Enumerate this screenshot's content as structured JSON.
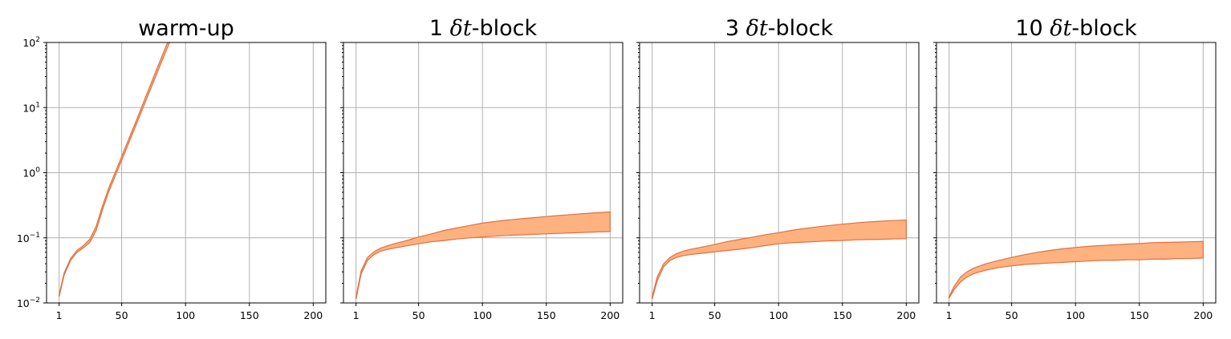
{
  "chart_data": [
    {
      "type": "area",
      "title": "warm-up",
      "title_parts": [
        {
          "text": "warm-up",
          "italic": false
        }
      ],
      "xlabel": "",
      "ylabel": "",
      "xlim": [
        1,
        200
      ],
      "ylim": [
        0.01,
        100
      ],
      "yscale": "log",
      "grid": true,
      "xticks": [
        1,
        50,
        100,
        150,
        200
      ],
      "yticks": [
        0.01,
        0.1,
        1,
        10,
        100
      ],
      "ytick_labels": [
        {
          "base": "10",
          "exp": "−2"
        },
        {
          "base": "10",
          "exp": "−1"
        },
        {
          "base": "10",
          "exp": "0"
        },
        {
          "base": "10",
          "exp": "1"
        },
        {
          "base": "10",
          "exp": "2"
        }
      ],
      "colors": {
        "fill": "#ffb27f",
        "edge": "#e07040"
      },
      "x": [
        1,
        5,
        10,
        15,
        20,
        25,
        30,
        35,
        40,
        45,
        50,
        55,
        60,
        65,
        70,
        75,
        80,
        85,
        90
      ],
      "lower": [
        0.0125,
        0.027,
        0.045,
        0.06,
        0.07,
        0.085,
        0.13,
        0.27,
        0.52,
        0.9,
        1.55,
        2.7,
        4.7,
        8.2,
        14.5,
        25,
        44,
        76,
        130
      ],
      "upper": [
        0.0135,
        0.029,
        0.048,
        0.064,
        0.076,
        0.095,
        0.15,
        0.31,
        0.59,
        1.02,
        1.78,
        3.1,
        5.4,
        9.5,
        16.8,
        29.5,
        52,
        90,
        155
      ]
    },
    {
      "type": "area",
      "title": "1 δt-block",
      "title_parts": [
        {
          "text": "1 ",
          "italic": false
        },
        {
          "text": "δt",
          "italic": true
        },
        {
          "text": "-block",
          "italic": false
        }
      ],
      "xlabel": "",
      "ylabel": "",
      "xlim": [
        1,
        200
      ],
      "ylim": [
        0.01,
        100
      ],
      "yscale": "log",
      "grid": true,
      "xticks": [
        1,
        50,
        100,
        150,
        200
      ],
      "colors": {
        "fill": "#ffb27f",
        "edge": "#e07040"
      },
      "x": [
        1,
        5,
        10,
        15,
        20,
        25,
        30,
        40,
        50,
        60,
        70,
        80,
        90,
        100,
        110,
        120,
        130,
        140,
        150,
        160,
        170,
        180,
        190,
        200
      ],
      "lower": [
        0.0115,
        0.028,
        0.045,
        0.055,
        0.062,
        0.066,
        0.069,
        0.075,
        0.081,
        0.087,
        0.091,
        0.096,
        0.1,
        0.103,
        0.106,
        0.109,
        0.111,
        0.113,
        0.115,
        0.117,
        0.119,
        0.121,
        0.123,
        0.125
      ],
      "upper": [
        0.0125,
        0.031,
        0.05,
        0.061,
        0.069,
        0.075,
        0.08,
        0.09,
        0.103,
        0.115,
        0.13,
        0.142,
        0.155,
        0.168,
        0.178,
        0.188,
        0.196,
        0.204,
        0.212,
        0.22,
        0.228,
        0.236,
        0.243,
        0.25
      ]
    },
    {
      "type": "area",
      "title": "3 δt-block",
      "title_parts": [
        {
          "text": "3 ",
          "italic": false
        },
        {
          "text": "δt",
          "italic": true
        },
        {
          "text": "-block",
          "italic": false
        }
      ],
      "xlabel": "",
      "ylabel": "",
      "xlim": [
        1,
        200
      ],
      "ylim": [
        0.01,
        100
      ],
      "yscale": "log",
      "grid": true,
      "xticks": [
        1,
        50,
        100,
        150,
        200
      ],
      "colors": {
        "fill": "#ffb27f",
        "edge": "#e07040"
      },
      "x": [
        1,
        5,
        10,
        15,
        20,
        25,
        30,
        40,
        50,
        60,
        70,
        80,
        90,
        100,
        110,
        120,
        130,
        140,
        150,
        160,
        170,
        180,
        190,
        200
      ],
      "lower": [
        0.0115,
        0.022,
        0.036,
        0.045,
        0.05,
        0.053,
        0.055,
        0.058,
        0.061,
        0.064,
        0.067,
        0.071,
        0.076,
        0.081,
        0.084,
        0.086,
        0.088,
        0.09,
        0.091,
        0.093,
        0.094,
        0.095,
        0.096,
        0.097
      ],
      "upper": [
        0.0125,
        0.025,
        0.04,
        0.05,
        0.057,
        0.062,
        0.066,
        0.072,
        0.079,
        0.088,
        0.095,
        0.103,
        0.112,
        0.12,
        0.13,
        0.139,
        0.147,
        0.155,
        0.162,
        0.169,
        0.175,
        0.18,
        0.184,
        0.188
      ]
    },
    {
      "type": "area",
      "title": "10 δt-block",
      "title_parts": [
        {
          "text": "10 ",
          "italic": false
        },
        {
          "text": "δt",
          "italic": true
        },
        {
          "text": "-block",
          "italic": false
        }
      ],
      "xlabel": "",
      "ylabel": "",
      "xlim": [
        1,
        200
      ],
      "ylim": [
        0.01,
        100
      ],
      "yscale": "log",
      "grid": true,
      "xticks": [
        1,
        50,
        100,
        150,
        200
      ],
      "colors": {
        "fill": "#ffb27f",
        "edge": "#e07040"
      },
      "x": [
        1,
        5,
        10,
        15,
        20,
        25,
        30,
        40,
        50,
        60,
        70,
        80,
        90,
        100,
        110,
        120,
        130,
        140,
        150,
        160,
        170,
        180,
        190,
        200
      ],
      "lower": [
        0.012,
        0.016,
        0.021,
        0.025,
        0.028,
        0.03,
        0.032,
        0.035,
        0.037,
        0.039,
        0.04,
        0.041,
        0.042,
        0.043,
        0.044,
        0.045,
        0.045,
        0.046,
        0.046,
        0.047,
        0.047,
        0.048,
        0.048,
        0.049
      ],
      "upper": [
        0.0125,
        0.018,
        0.025,
        0.03,
        0.034,
        0.037,
        0.04,
        0.045,
        0.05,
        0.055,
        0.06,
        0.064,
        0.068,
        0.071,
        0.074,
        0.076,
        0.078,
        0.08,
        0.082,
        0.084,
        0.085,
        0.086,
        0.087,
        0.088
      ]
    }
  ]
}
